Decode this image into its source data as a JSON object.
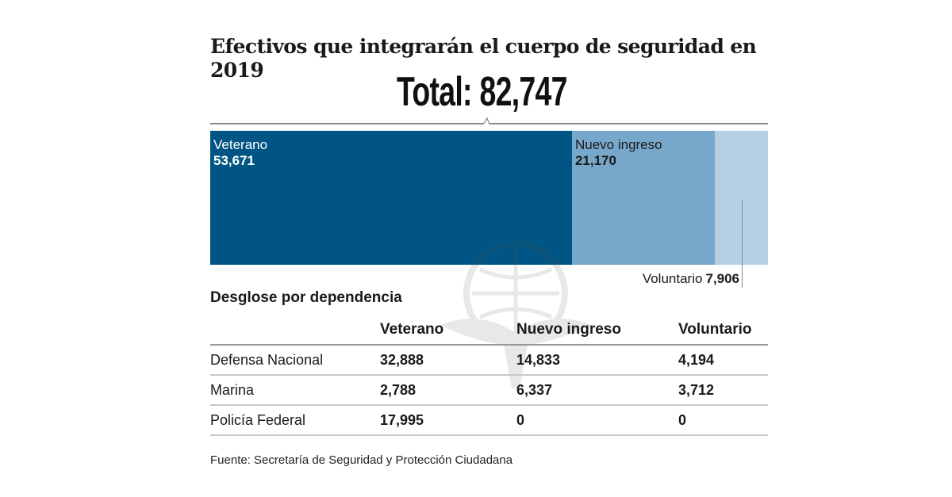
{
  "title": "Efectivos que integrarán el cuerpo de seguridad en 2019",
  "total_label": "Total: 82,747",
  "bar": {
    "segments": [
      {
        "label": "Veterano",
        "value_text": "53,671",
        "value": 53671,
        "color": "#005584",
        "text_color": "#ffffff"
      },
      {
        "label": "Nuevo ingreso",
        "value_text": "21,170",
        "value": 21170,
        "color": "#77a8cb",
        "text_color": "#1a1a1a"
      },
      {
        "label": "Voluntario",
        "value_text": "7,906",
        "value": 7906,
        "color": "#b7cfe3",
        "text_color": "#1a1a1a"
      }
    ]
  },
  "subtitle": "Desglose por dependencia",
  "table": {
    "headers": [
      "",
      "Veterano",
      "Nuevo ingreso",
      "Voluntario"
    ],
    "rows": [
      [
        "Defensa Nacional",
        "32,888",
        "14,833",
        "4,194"
      ],
      [
        "Marina",
        "2,788",
        "6,337",
        "3,712"
      ],
      [
        "Policía Federal",
        "17,995",
        "0",
        "0"
      ]
    ]
  },
  "source": "Fuente: Secretaría de Seguridad y Protección Ciudadana",
  "chart_data": {
    "type": "bar",
    "title": "Efectivos que integrarán el cuerpo de seguridad en 2019",
    "subtitle": "Total: 82,747",
    "stacked": true,
    "orientation": "horizontal",
    "categories": [
      "Veterano",
      "Nuevo ingreso",
      "Voluntario"
    ],
    "values": [
      53671,
      21170,
      7906
    ],
    "total": 82747,
    "table": {
      "title": "Desglose por dependencia",
      "columns": [
        "Veterano",
        "Nuevo ingreso",
        "Voluntario"
      ],
      "rows": [
        {
          "name": "Defensa Nacional",
          "values": [
            32888,
            14833,
            4194
          ]
        },
        {
          "name": "Marina",
          "values": [
            2788,
            6337,
            3712
          ]
        },
        {
          "name": "Policía Federal",
          "values": [
            17995,
            0,
            0
          ]
        }
      ]
    },
    "xlabel": "",
    "ylabel": "",
    "grid": false,
    "legend": "none"
  }
}
